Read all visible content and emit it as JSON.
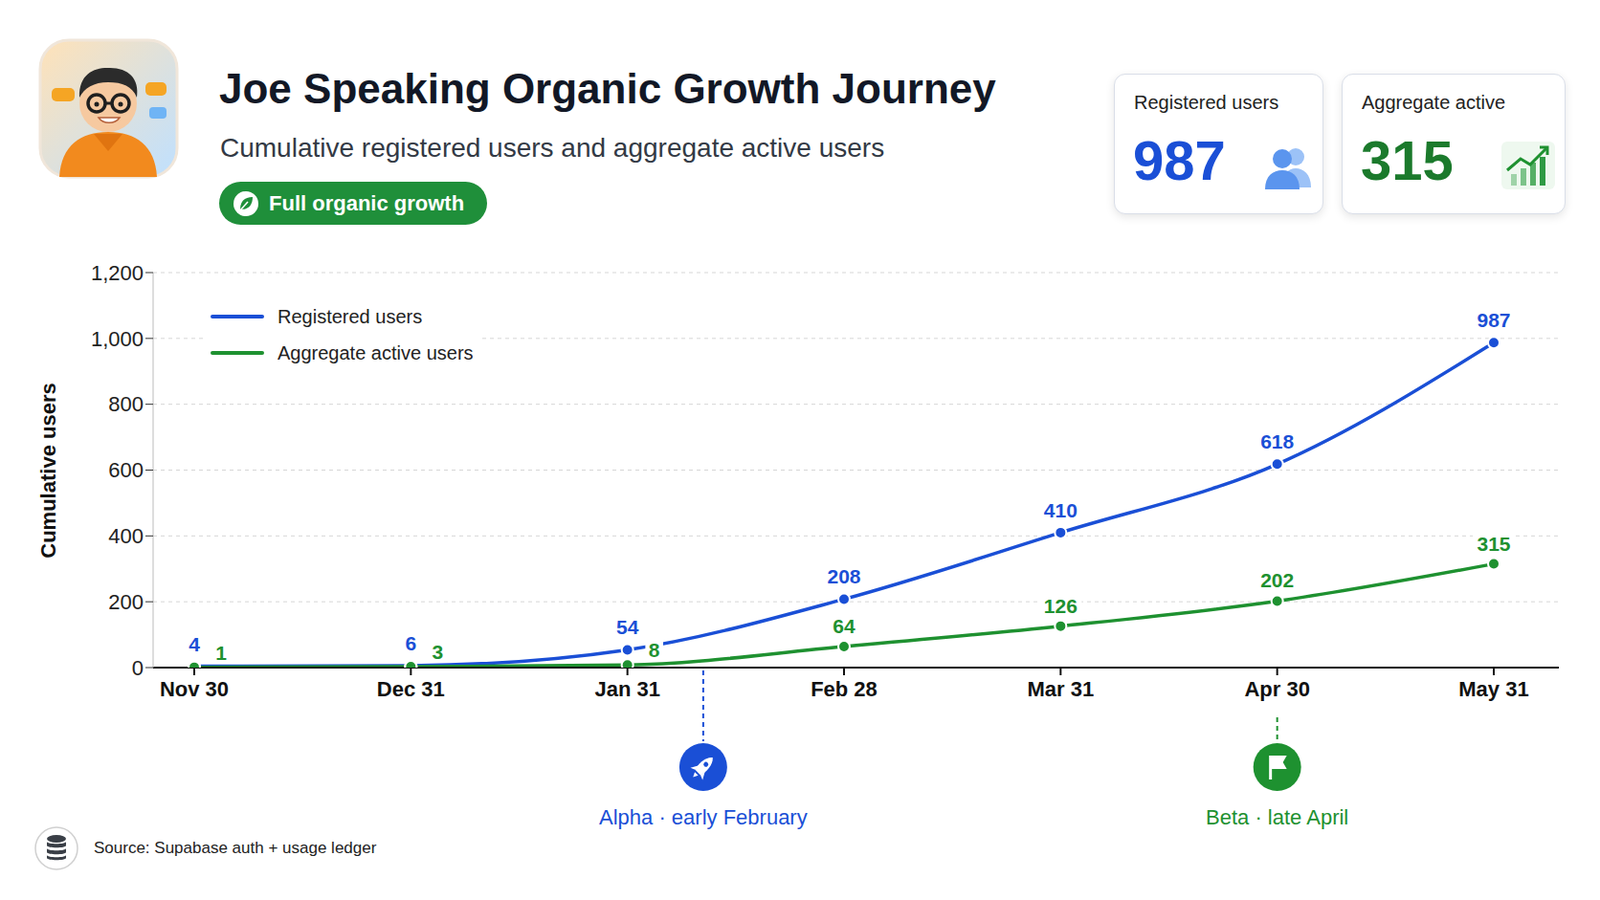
{
  "chart_data": {
    "type": "line",
    "title": "Joe Speaking Organic Growth Journey",
    "subtitle": "Cumulative registered users and aggregate active users",
    "badge": "Full organic growth",
    "kpis": [
      {
        "label": "Registered users",
        "value": 987,
        "color": "#1a4fd6"
      },
      {
        "label": "Aggregate active",
        "value": 315,
        "color": "#1b7a2c"
      }
    ],
    "y_label": "Cumulative users",
    "categories": [
      "Nov 30",
      "Dec 31",
      "Jan 31",
      "Feb 28",
      "Mar 31",
      "Apr 30",
      "May 31"
    ],
    "series": [
      {
        "name": "Registered users",
        "color": "#1a4fd6",
        "values": [
          4,
          6,
          54,
          208,
          410,
          618,
          987
        ]
      },
      {
        "name": "Aggregate active users",
        "color": "#1e9130",
        "values": [
          1,
          3,
          8,
          64,
          126,
          202,
          315
        ]
      }
    ],
    "ylim": [
      0,
      1200
    ],
    "yticks": [
      0,
      200,
      400,
      600,
      800,
      {
        "value": 1000,
        "label": "1,000"
      },
      {
        "value": 1200,
        "label": "1,200"
      }
    ],
    "grid": true,
    "legend": "upper left",
    "data_labels": true,
    "marker": "circle",
    "annotations": [
      {
        "text": "Alpha · early February",
        "color": "#1a4fd6"
      },
      {
        "text": "Beta · late April",
        "color": "#1e9130"
      }
    ],
    "source": "Source: Supabase auth + usage ledger"
  }
}
